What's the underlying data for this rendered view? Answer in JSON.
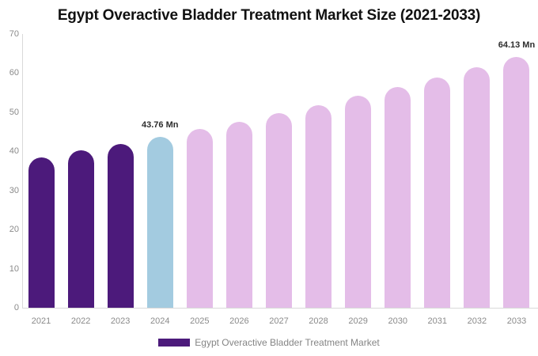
{
  "title": "Egypt Overactive Bladder Treatment Market Size (2021-2033)",
  "legend": {
    "label": "Egypt Overactive Bladder Treatment Market",
    "swatch_color": "#4C1A7B"
  },
  "colors": {
    "historical_bar": "#4C1A7B",
    "current_year_bar": "#A3CBE0",
    "forecast_bar": "#E4BDE8",
    "axis_line": "#d9d9d9",
    "tick_label": "#8a8a8a",
    "value_label": "#2d2d2d"
  },
  "chart_data": {
    "type": "bar",
    "title": "Egypt Overactive Bladder Treatment Market Size (2021-2033)",
    "xlabel": "",
    "ylabel": "",
    "ylim": [
      0,
      70
    ],
    "yticks": [
      0,
      10,
      20,
      30,
      40,
      50,
      60,
      70
    ],
    "grid": false,
    "legend_position": "bottom-center",
    "categories": [
      "2021",
      "2022",
      "2023",
      "2024",
      "2025",
      "2026",
      "2027",
      "2028",
      "2029",
      "2030",
      "2031",
      "2032",
      "2033"
    ],
    "series": [
      {
        "name": "Egypt Overactive Bladder Treatment Market",
        "unit": "Mn",
        "values": [
          38.53,
          40.2,
          41.94,
          43.76,
          45.66,
          47.64,
          49.71,
          51.87,
          54.12,
          56.47,
          58.92,
          61.47,
          64.13
        ],
        "bar_roles": [
          "historical",
          "historical",
          "historical",
          "current",
          "forecast",
          "forecast",
          "forecast",
          "forecast",
          "forecast",
          "forecast",
          "forecast",
          "forecast",
          "forecast"
        ]
      }
    ],
    "annotations": [
      {
        "category": "2024",
        "text": "43.76 Mn"
      },
      {
        "category": "2033",
        "text": "64.13 Mn"
      }
    ]
  }
}
